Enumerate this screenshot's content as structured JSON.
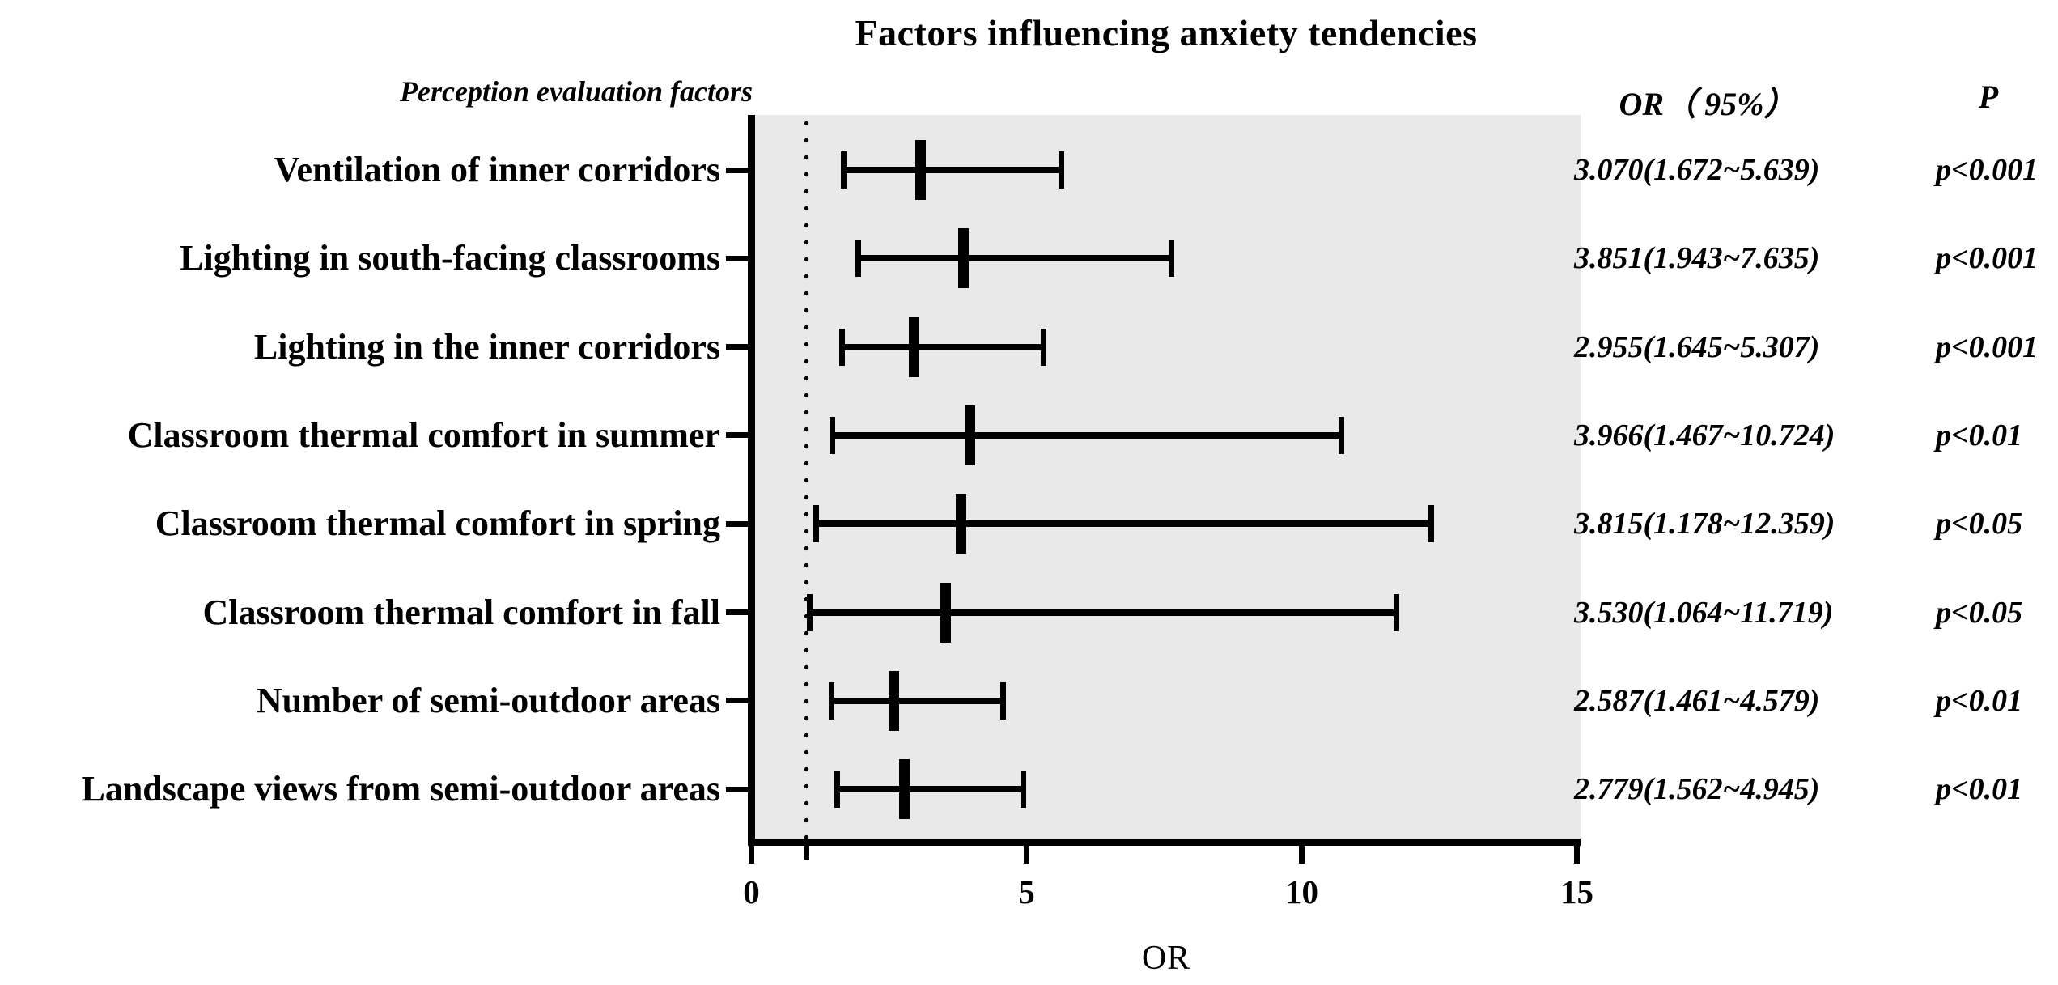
{
  "title": "Factors influencing anxiety tendencies",
  "column_headers": {
    "factors": "Perception evaluation factors",
    "or_ci": "OR（ 95%）",
    "p": "P"
  },
  "x_axis": {
    "label": "OR",
    "min": 0,
    "max": 15,
    "ticks": [
      0,
      5,
      10,
      15
    ],
    "reference_line_x": 1
  },
  "colors": {
    "ink": "#000000",
    "plot_bg": "#e9e9e9",
    "page_bg": "#ffffff"
  },
  "chart_data": {
    "type": "forest",
    "title": "Factors influencing anxiety tendencies",
    "xlabel": "OR",
    "xlim": [
      0,
      15
    ],
    "x_ticks": [
      0,
      5,
      10,
      15
    ],
    "reference_line_x": 1,
    "grid": false,
    "legend": "none",
    "plot_background": "#e9e9e9",
    "rows": [
      {
        "label": "Ventilation of inner corridors",
        "or": 3.07,
        "ci_low": 1.672,
        "ci_high": 5.639,
        "or_ci_text": "3.070(1.672~5.639)",
        "p_text": "p<0.001"
      },
      {
        "label": "Lighting in south-facing classrooms",
        "or": 3.851,
        "ci_low": 1.943,
        "ci_high": 7.635,
        "or_ci_text": "3.851(1.943~7.635)",
        "p_text": "p<0.001"
      },
      {
        "label": "Lighting in the inner corridors",
        "or": 2.955,
        "ci_low": 1.645,
        "ci_high": 5.307,
        "or_ci_text": "2.955(1.645~5.307)",
        "p_text": "p<0.001"
      },
      {
        "label": "Classroom thermal comfort in summer",
        "or": 3.966,
        "ci_low": 1.467,
        "ci_high": 10.724,
        "or_ci_text": "3.966(1.467~10.724)",
        "p_text": "p<0.01"
      },
      {
        "label": "Classroom thermal comfort in spring",
        "or": 3.815,
        "ci_low": 1.178,
        "ci_high": 12.359,
        "or_ci_text": "3.815(1.178~12.359)",
        "p_text": "p<0.05"
      },
      {
        "label": "Classroom thermal comfort in fall",
        "or": 3.53,
        "ci_low": 1.064,
        "ci_high": 11.719,
        "or_ci_text": "3.530(1.064~11.719)",
        "p_text": "p<0.05"
      },
      {
        "label": "Number of semi-outdoor areas",
        "or": 2.587,
        "ci_low": 1.461,
        "ci_high": 4.579,
        "or_ci_text": "2.587(1.461~4.579)",
        "p_text": "p<0.01"
      },
      {
        "label": "Landscape views from semi-outdoor areas",
        "or": 2.779,
        "ci_low": 1.562,
        "ci_high": 4.945,
        "or_ci_text": "2.779(1.562~4.945)",
        "p_text": "p<0.01"
      }
    ]
  }
}
